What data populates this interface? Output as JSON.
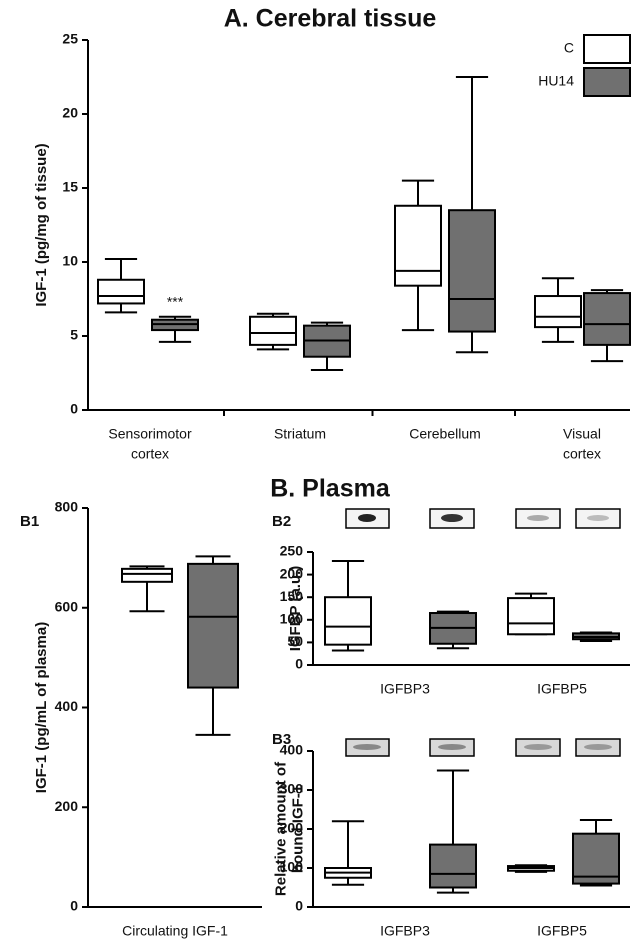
{
  "section_title": "B. Plasma",
  "chart_data": [
    {
      "type": "box",
      "title": "A. Cerebral tissue",
      "ylabel": [
        "IGF-1 (pg/mg of tissue)"
      ],
      "categories": [
        [
          "Sensorimotor",
          "cortex"
        ],
        [
          "Striatum"
        ],
        [
          "Cerebellum"
        ],
        [
          "Visual",
          "cortex"
        ]
      ],
      "series": [
        {
          "name": "C",
          "color": "#ffffff",
          "min": [
            6.6,
            4.1,
            5.4,
            4.6
          ],
          "q1": [
            7.2,
            4.4,
            8.4,
            5.6
          ],
          "median": [
            7.7,
            5.2,
            9.4,
            6.3
          ],
          "q3": [
            8.8,
            6.3,
            13.8,
            7.7
          ],
          "max": [
            10.2,
            6.5,
            15.5,
            8.9
          ]
        },
        {
          "name": "HU14",
          "color": "#707070",
          "min": [
            4.6,
            2.7,
            3.9,
            3.3
          ],
          "q1": [
            5.4,
            3.6,
            5.3,
            4.4
          ],
          "median": [
            5.8,
            4.7,
            7.5,
            5.8
          ],
          "q3": [
            6.1,
            5.7,
            13.5,
            7.9
          ],
          "max": [
            6.3,
            5.9,
            22.5,
            8.1
          ]
        }
      ],
      "ylim": [
        0,
        25
      ],
      "yticks": [
        0,
        5,
        10,
        15,
        20,
        25
      ],
      "legend": "top-right",
      "annotations": [
        {
          "text": "***"
        }
      ]
    },
    {
      "type": "box",
      "panel_label": "B1",
      "ylabel": [
        "IGF-1 (pg/mL of plasma)"
      ],
      "categories": [
        [
          "Circulating IGF-1"
        ]
      ],
      "series": [
        {
          "color": "#ffffff",
          "min": [
            593
          ],
          "q1": [
            652
          ],
          "median": [
            668
          ],
          "q3": [
            678
          ],
          "max": [
            683
          ]
        },
        {
          "color": "#707070",
          "min": [
            345
          ],
          "q1": [
            440
          ],
          "median": [
            582
          ],
          "q3": [
            688
          ],
          "max": [
            703
          ]
        }
      ],
      "ylim": [
        0,
        800
      ],
      "yticks": [
        0,
        200,
        400,
        600,
        800
      ]
    },
    {
      "type": "box",
      "panel_label": "B2",
      "ylabel": [
        "IGFBP (a.u.)"
      ],
      "categories": [
        [
          "IGFBP3"
        ],
        [
          "IGFBP5"
        ]
      ],
      "series": [
        {
          "color": "#ffffff",
          "min": [
            32,
            68
          ],
          "q1": [
            45,
            68
          ],
          "median": [
            85,
            92
          ],
          "q3": [
            150,
            148
          ],
          "max": [
            230,
            158
          ]
        },
        {
          "color": "#707070",
          "min": [
            37,
            53
          ],
          "q1": [
            47,
            57
          ],
          "median": [
            82,
            62
          ],
          "q3": [
            115,
            70
          ],
          "max": [
            118,
            72
          ]
        }
      ],
      "ylim": [
        0,
        250
      ],
      "yticks": [
        0,
        50,
        100,
        150,
        200,
        250
      ]
    },
    {
      "type": "box",
      "panel_label": "B3",
      "ylabel": [
        "Relative amount of",
        "bound IGF-1"
      ],
      "categories": [
        [
          "IGFBP3"
        ],
        [
          "IGFBP5"
        ]
      ],
      "series": [
        {
          "color": "#ffffff",
          "min": [
            57,
            90
          ],
          "q1": [
            75,
            93
          ],
          "median": [
            88,
            100
          ],
          "q3": [
            100,
            105
          ],
          "max": [
            220,
            107
          ]
        },
        {
          "color": "#707070",
          "min": [
            37,
            55
          ],
          "q1": [
            50,
            60
          ],
          "median": [
            85,
            78
          ],
          "q3": [
            160,
            188
          ],
          "max": [
            350,
            223
          ]
        }
      ],
      "ylim": [
        0,
        400
      ],
      "yticks": [
        0,
        100,
        200,
        300,
        400
      ]
    }
  ]
}
